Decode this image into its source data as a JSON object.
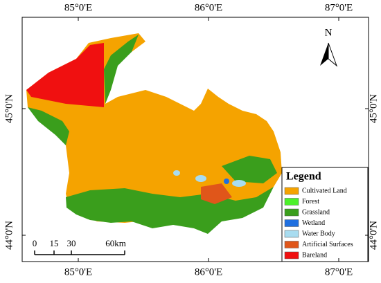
{
  "map": {
    "lon_labels": [
      "85°0'E",
      "86°0'E",
      "87°0'E"
    ],
    "lat_labels": [
      "45°0'N",
      "44°0'N"
    ],
    "north": "N",
    "scale_labels": [
      "0",
      "15",
      "30",
      "60km"
    ],
    "legend": {
      "title": "Legend",
      "items": [
        {
          "label": "Cultivated Land",
          "color": "#f5a300"
        },
        {
          "label": "Forest",
          "color": "#4cf02a"
        },
        {
          "label": "Grassland",
          "color": "#3a9e1c"
        },
        {
          "label": "Wetland",
          "color": "#1f6fe0"
        },
        {
          "label": "Water Body",
          "color": "#a8dcf0"
        },
        {
          "label": "Artificial Surfaces",
          "color": "#e0561a"
        },
        {
          "label": "Bareland",
          "color": "#f01010"
        }
      ]
    }
  }
}
